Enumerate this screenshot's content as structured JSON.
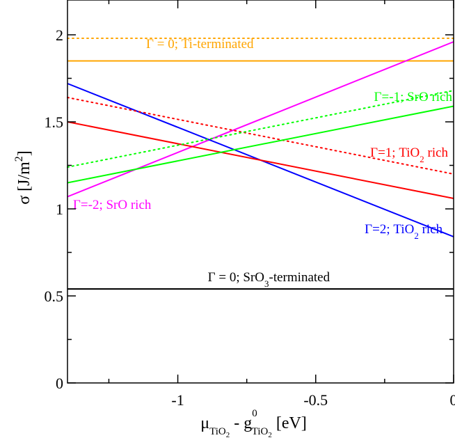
{
  "chart_data": {
    "type": "line",
    "xlim": [
      -1.4,
      0
    ],
    "ylim": [
      0,
      2.2
    ],
    "x_ticks": [
      {
        "value": -1,
        "label": "-1"
      },
      {
        "value": -0.5,
        "label": "-0.5"
      },
      {
        "value": 0,
        "label": "0"
      }
    ],
    "y_ticks": [
      {
        "value": 0,
        "label": "0"
      },
      {
        "value": 0.5,
        "label": "0.5"
      },
      {
        "value": 1,
        "label": "1"
      },
      {
        "value": 1.5,
        "label": "1.5"
      },
      {
        "value": 2,
        "label": "2"
      }
    ],
    "xlabel": {
      "main": "μ",
      "sub1": "TiO",
      "sub1b": "2",
      "mid": " - g",
      "sup": "0",
      "sub2": "TiO",
      "sub2b": "2",
      "unit": " [eV]"
    },
    "ylabel": {
      "main": "σ [J/m",
      "sup": "2",
      "end": "]"
    },
    "grid": false,
    "series": [
      {
        "name": "Γ = 0; Ti-terminated",
        "color": "#ffa500",
        "style": "dotted",
        "x": [
          -1.4,
          0
        ],
        "y": [
          1.98,
          1.98
        ]
      },
      {
        "name": "Γ = 0; Ti-terminated",
        "color": "#ffa500",
        "style": "solid",
        "x": [
          -1.4,
          0
        ],
        "y": [
          1.85,
          1.85
        ]
      },
      {
        "name": "Γ=-2; SrO rich",
        "color": "#ff00ff",
        "style": "solid",
        "x": [
          -1.4,
          0
        ],
        "y": [
          1.07,
          1.96
        ]
      },
      {
        "name": "Γ=2; TiO2 rich",
        "color": "#0000ff",
        "style": "solid",
        "x": [
          -1.4,
          0
        ],
        "y": [
          1.72,
          0.84
        ]
      },
      {
        "name": "Γ=1; TiO2 rich",
        "color": "#ff0000",
        "style": "dotted",
        "x": [
          -1.4,
          0
        ],
        "y": [
          1.64,
          1.2
        ]
      },
      {
        "name": "Γ=1; TiO2 rich",
        "color": "#ff0000",
        "style": "solid",
        "x": [
          -1.4,
          0
        ],
        "y": [
          1.5,
          1.06
        ]
      },
      {
        "name": "Γ=-1; SrO rich",
        "color": "#00ff00",
        "style": "dotted",
        "x": [
          -1.4,
          0
        ],
        "y": [
          1.24,
          1.68
        ]
      },
      {
        "name": "Γ=-1; SrO rich",
        "color": "#00ff00",
        "style": "solid",
        "x": [
          -1.4,
          0
        ],
        "y": [
          1.15,
          1.59
        ]
      },
      {
        "name": "Γ = 0; SrO3-terminated",
        "color": "#000000",
        "style": "solid",
        "x": [
          -1.4,
          0
        ],
        "y": [
          0.54,
          0.54
        ]
      }
    ],
    "annotations": [
      {
        "id": "ti-term",
        "parts": [
          {
            "t": "Γ = 0; Ti-terminated"
          }
        ],
        "x": -0.92,
        "y": 1.925,
        "color": "#ffa500",
        "anchor": "middle"
      },
      {
        "id": "sro-m1",
        "parts": [
          {
            "t": "Γ=-1; SrO rich"
          }
        ],
        "x": -0.005,
        "y": 1.62,
        "color": "#00ff00",
        "anchor": "end"
      },
      {
        "id": "tio2-1",
        "parts": [
          {
            "t": "Γ=1; TiO"
          },
          {
            "t": "2",
            "sub": true
          },
          {
            "t": " rich"
          }
        ],
        "x": -0.02,
        "y": 1.3,
        "color": "#ff0000",
        "anchor": "end"
      },
      {
        "id": "sro-m2",
        "parts": [
          {
            "t": "Γ=-2; SrO rich"
          }
        ],
        "x": -1.38,
        "y": 1.0,
        "color": "#ff00ff",
        "anchor": "start"
      },
      {
        "id": "tio2-2",
        "parts": [
          {
            "t": "Γ=2; TiO"
          },
          {
            "t": "2",
            "sub": true
          },
          {
            "t": " rich"
          }
        ],
        "x": -0.04,
        "y": 0.86,
        "color": "#0000ff",
        "anchor": "end"
      },
      {
        "id": "sro3-term",
        "parts": [
          {
            "t": "Γ = 0; SrO"
          },
          {
            "t": "3",
            "sub": true
          },
          {
            "t": "-terminated"
          }
        ],
        "x": -0.67,
        "y": 0.585,
        "color": "#000000",
        "anchor": "middle"
      }
    ]
  }
}
